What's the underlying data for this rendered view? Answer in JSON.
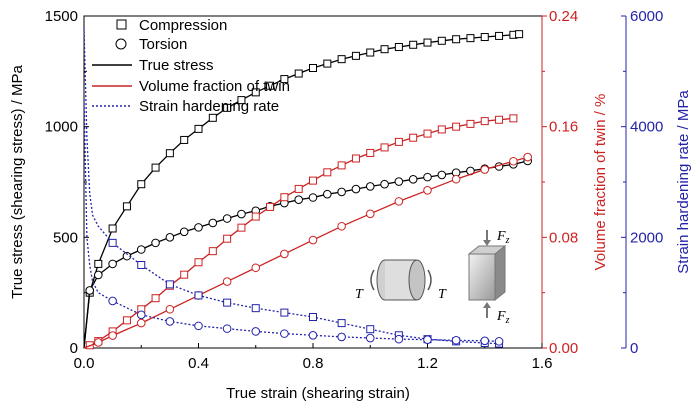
{
  "chart_data": {
    "type": "line",
    "xlabel": "True strain (shearing strain)",
    "ylabel_left": "True stress (shearing stress) / MPa",
    "ylabel_right1": "Volume fraction of twin / %",
    "ylabel_right2": "Strain hardening rate / MPa",
    "xlim": [
      0,
      1.6
    ],
    "ylim_left": [
      0,
      1500
    ],
    "ylim_right1": [
      0,
      0.24
    ],
    "ylim_right2": [
      0,
      6000
    ],
    "x_ticks": [
      "0.0",
      "0.4",
      "0.8",
      "1.2",
      "1.6"
    ],
    "y_ticks_left": [
      "0",
      "500",
      "1000",
      "1500"
    ],
    "y_ticks_right1": [
      "0.00",
      "0.08",
      "0.16",
      "0.24"
    ],
    "y_ticks_right2": [
      "0",
      "2000",
      "4000",
      "6000"
    ],
    "colors": {
      "stress": "#000000",
      "twin": "#cc2222",
      "hardening": "#2323aa"
    },
    "legend": {
      "compression": "Compression",
      "torsion": "Torsion",
      "true_stress": "True stress",
      "twin_fraction": "Volume fraction of twin",
      "hardening_rate": "Strain hardening rate"
    },
    "inset_labels": {
      "torque_left": "T",
      "torque_right": "T",
      "force_top": "F",
      "force_bottom": "F",
      "force_subscript": "z"
    },
    "series": [
      {
        "marker": "square",
        "color": "#000000",
        "axis": "left",
        "x": [
          0.0,
          0.02,
          0.05,
          0.1,
          0.15,
          0.2,
          0.25,
          0.3,
          0.35,
          0.4,
          0.45,
          0.5,
          0.55,
          0.6,
          0.65,
          0.7,
          0.75,
          0.8,
          0.85,
          0.9,
          0.95,
          1.0,
          1.05,
          1.1,
          1.15,
          1.2,
          1.25,
          1.3,
          1.35,
          1.4,
          1.45,
          1.5,
          1.52
        ],
        "y": [
          0,
          250,
          380,
          540,
          640,
          740,
          815,
          880,
          940,
          990,
          1040,
          1085,
          1120,
          1155,
          1185,
          1215,
          1240,
          1265,
          1285,
          1305,
          1320,
          1335,
          1350,
          1360,
          1370,
          1380,
          1388,
          1395,
          1400,
          1405,
          1410,
          1415,
          1418
        ]
      },
      {
        "marker": "circle",
        "color": "#000000",
        "axis": "left",
        "x": [
          0.0,
          0.02,
          0.05,
          0.1,
          0.15,
          0.2,
          0.25,
          0.3,
          0.35,
          0.4,
          0.45,
          0.5,
          0.55,
          0.6,
          0.65,
          0.7,
          0.75,
          0.8,
          0.85,
          0.9,
          0.95,
          1.0,
          1.05,
          1.1,
          1.15,
          1.2,
          1.25,
          1.3,
          1.35,
          1.4,
          1.45,
          1.5,
          1.55
        ],
        "y": [
          0,
          260,
          330,
          380,
          415,
          445,
          475,
          500,
          525,
          545,
          565,
          585,
          605,
          620,
          640,
          655,
          670,
          680,
          695,
          705,
          718,
          730,
          740,
          752,
          762,
          772,
          782,
          792,
          800,
          810,
          820,
          830,
          845
        ]
      },
      {
        "marker": "square",
        "color": "#cc2222",
        "axis": "right1",
        "x": [
          0.0,
          0.02,
          0.05,
          0.1,
          0.15,
          0.2,
          0.25,
          0.3,
          0.35,
          0.4,
          0.45,
          0.5,
          0.55,
          0.6,
          0.65,
          0.7,
          0.75,
          0.8,
          0.85,
          0.9,
          0.95,
          1.0,
          1.05,
          1.1,
          1.15,
          1.2,
          1.25,
          1.3,
          1.35,
          1.4,
          1.45,
          1.5
        ],
        "y": [
          0.0,
          0.002,
          0.005,
          0.012,
          0.02,
          0.028,
          0.036,
          0.045,
          0.053,
          0.062,
          0.07,
          0.079,
          0.087,
          0.095,
          0.102,
          0.109,
          0.115,
          0.121,
          0.127,
          0.132,
          0.137,
          0.141,
          0.145,
          0.149,
          0.152,
          0.155,
          0.158,
          0.16,
          0.162,
          0.164,
          0.165,
          0.166
        ]
      },
      {
        "marker": "circle",
        "color": "#cc2222",
        "axis": "right1",
        "x": [
          0.0,
          0.05,
          0.1,
          0.2,
          0.3,
          0.4,
          0.5,
          0.6,
          0.7,
          0.8,
          0.9,
          1.0,
          1.1,
          1.2,
          1.3,
          1.4,
          1.5,
          1.55
        ],
        "y": [
          0.0,
          0.004,
          0.009,
          0.018,
          0.028,
          0.038,
          0.048,
          0.058,
          0.068,
          0.078,
          0.088,
          0.097,
          0.106,
          0.114,
          0.122,
          0.129,
          0.135,
          0.138
        ]
      },
      {
        "marker": "square",
        "color": "#2323aa",
        "axis": "right2",
        "x": [
          0.0,
          0.01,
          0.02,
          0.03,
          0.05,
          0.1,
          0.2,
          0.3,
          0.4,
          0.5,
          0.6,
          0.7,
          0.8,
          0.9,
          1.0,
          1.1,
          1.2,
          1.3,
          1.4,
          1.45
        ],
        "y": [
          5800,
          3800,
          2800,
          2400,
          2200,
          1900,
          1500,
          1150,
          950,
          820,
          720,
          640,
          560,
          450,
          340,
          230,
          160,
          120,
          90,
          80
        ]
      },
      {
        "marker": "circle",
        "color": "#2323aa",
        "axis": "right2",
        "x": [
          0.0,
          0.01,
          0.02,
          0.03,
          0.05,
          0.1,
          0.2,
          0.3,
          0.4,
          0.5,
          0.6,
          0.7,
          0.8,
          0.9,
          1.0,
          1.1,
          1.2,
          1.3,
          1.4,
          1.45
        ],
        "y": [
          4500,
          2000,
          1500,
          1200,
          1000,
          850,
          600,
          480,
          400,
          350,
          300,
          260,
          230,
          200,
          180,
          160,
          150,
          140,
          130,
          120
        ]
      }
    ]
  }
}
